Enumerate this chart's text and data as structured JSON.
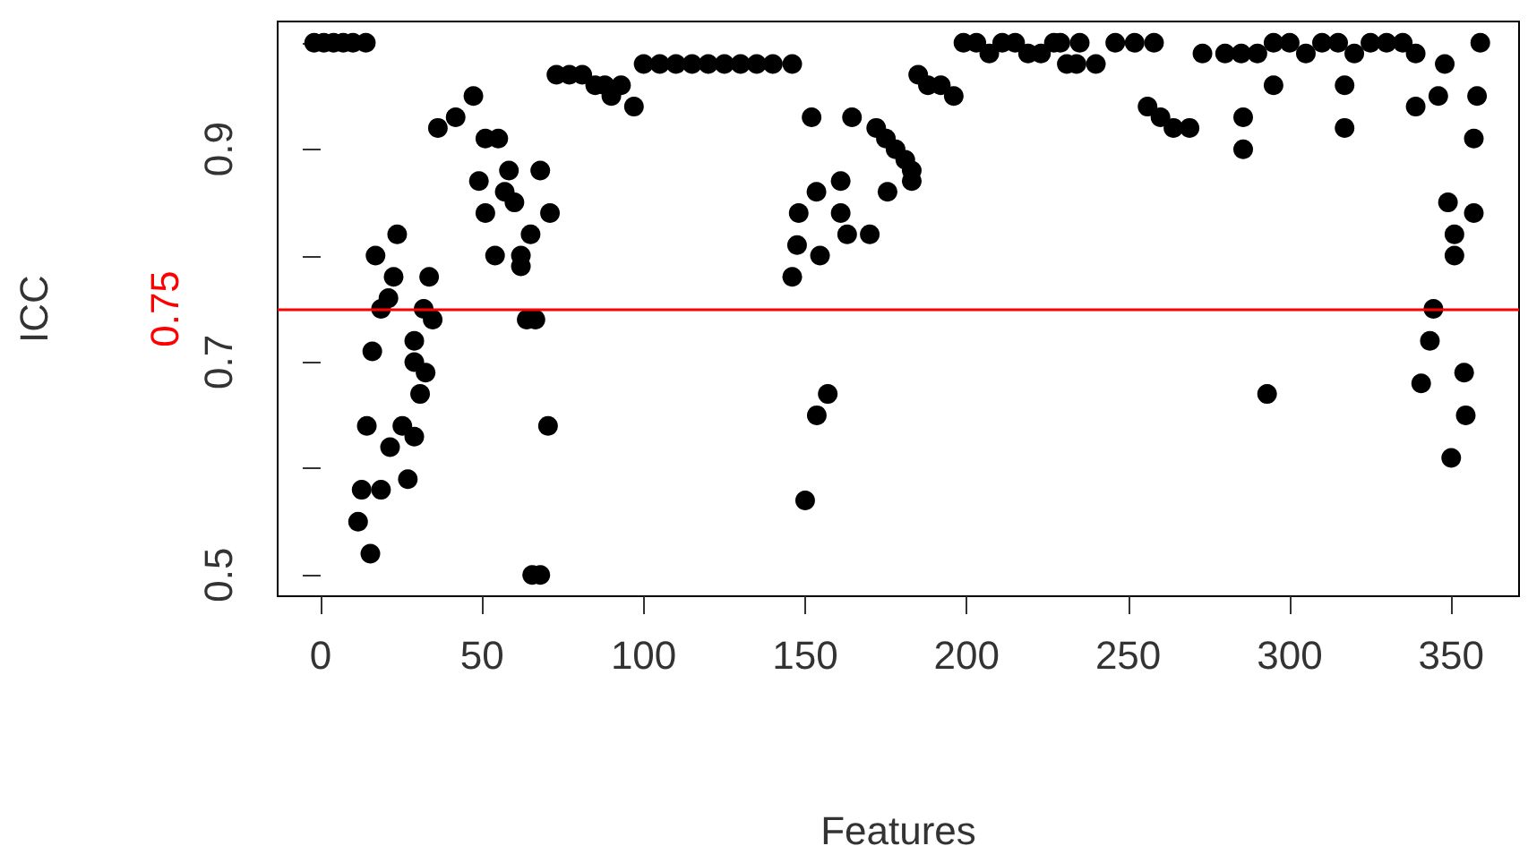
{
  "chart_data": {
    "type": "scatter",
    "xlabel": "Features",
    "ylabel": "ICC",
    "xlim": [
      -13.3,
      371
    ],
    "ylim": [
      0.48,
      1.02
    ],
    "xticks": [
      0,
      50,
      100,
      150,
      200,
      250,
      300,
      350
    ],
    "yticks": [
      0.5,
      {
        "value": 0.6,
        "label": null
      },
      0.7,
      {
        "value": 0.8,
        "label": null
      },
      0.9,
      {
        "value": 1.0,
        "label": null
      }
    ],
    "grid": false,
    "marker": "circle",
    "ref_lines": [
      {
        "axis": "y",
        "value": 0.75,
        "label": "0.75",
        "color": "#ff0000"
      }
    ],
    "series": [
      {
        "color": "#000000",
        "x": [
          -2,
          1,
          4,
          7,
          10,
          14,
          11.6,
          15.4,
          12.7,
          18.7,
          27,
          14.3,
          21.5,
          25.3,
          29,
          30.8,
          32.5,
          29,
          29,
          16,
          18.7,
          21,
          22.6,
          17,
          23.7,
          31.9,
          34.7,
          33.6,
          36.3,
          41.8,
          47.3,
          51,
          55,
          49,
          51,
          58.3,
          60,
          68,
          71,
          54,
          62,
          62,
          65,
          57,
          63.8,
          66.5,
          70.4,
          65.5,
          68,
          73,
          77,
          81,
          85,
          88,
          90,
          93,
          97,
          100,
          105,
          110,
          115,
          120,
          125,
          130,
          135,
          140,
          146,
          152,
          164.5,
          172,
          175,
          178,
          181,
          183,
          175.5,
          183,
          161,
          153.5,
          148,
          161,
          163,
          170,
          147.5,
          154.6,
          146,
          157,
          153.6,
          150,
          185,
          188,
          192,
          196,
          199,
          203,
          207,
          211,
          215,
          219,
          223,
          227,
          231,
          234,
          229,
          235,
          240,
          246,
          252,
          258,
          256,
          260,
          264,
          269,
          273,
          280,
          285,
          290,
          295,
          300,
          305,
          310,
          315,
          320,
          325,
          330,
          335,
          339,
          285.6,
          285.6,
          295,
          293,
          317,
          317,
          339,
          346,
          348,
          359,
          358,
          357,
          349,
          357,
          351,
          351,
          344.5,
          343.4,
          340.7,
          354,
          354.5,
          350
        ],
        "values": [
          1.0,
          1.0,
          1.0,
          1.0,
          1.0,
          1.0,
          0.55,
          0.52,
          0.58,
          0.58,
          0.59,
          0.64,
          0.62,
          0.64,
          0.63,
          0.67,
          0.69,
          0.7,
          0.72,
          0.71,
          0.75,
          0.76,
          0.78,
          0.8,
          0.82,
          0.75,
          0.74,
          0.78,
          0.92,
          0.93,
          0.95,
          0.91,
          0.91,
          0.87,
          0.84,
          0.88,
          0.85,
          0.88,
          0.84,
          0.8,
          0.8,
          0.79,
          0.82,
          0.86,
          0.74,
          0.74,
          0.64,
          0.5,
          0.5,
          0.97,
          0.97,
          0.97,
          0.96,
          0.96,
          0.95,
          0.96,
          0.94,
          0.98,
          0.98,
          0.98,
          0.98,
          0.98,
          0.98,
          0.98,
          0.98,
          0.98,
          0.98,
          0.93,
          0.93,
          0.92,
          0.91,
          0.9,
          0.89,
          0.87,
          0.86,
          0.88,
          0.87,
          0.86,
          0.84,
          0.84,
          0.82,
          0.82,
          0.81,
          0.8,
          0.78,
          0.67,
          0.65,
          0.57,
          0.97,
          0.96,
          0.96,
          0.95,
          1.0,
          1.0,
          0.99,
          1.0,
          1.0,
          0.99,
          0.99,
          1.0,
          0.98,
          0.98,
          1.0,
          1.0,
          0.98,
          1.0,
          1.0,
          1.0,
          0.94,
          0.93,
          0.92,
          0.92,
          0.99,
          0.99,
          0.99,
          0.99,
          1.0,
          1.0,
          0.99,
          1.0,
          1.0,
          0.99,
          1.0,
          1.0,
          1.0,
          0.99,
          0.93,
          0.9,
          0.96,
          0.67,
          0.96,
          0.92,
          0.94,
          0.95,
          0.98,
          1.0,
          0.95,
          0.91,
          0.85,
          0.84,
          0.82,
          0.8,
          0.75,
          0.72,
          0.68,
          0.69,
          0.65,
          0.61
        ]
      }
    ]
  }
}
